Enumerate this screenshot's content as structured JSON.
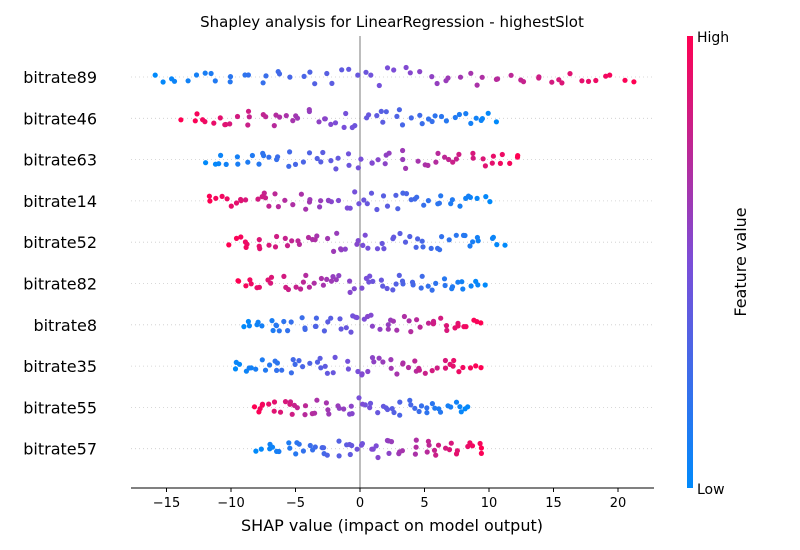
{
  "chart_data": {
    "type": "scatter",
    "title": "Shapley analysis for LinearRegression - highestSlot",
    "xlabel": "SHAP value (impact on model output)",
    "ylabel": "",
    "xlim": [
      -18,
      23
    ],
    "xticks": [
      -15,
      -10,
      -5,
      0,
      5,
      10,
      15,
      20
    ],
    "xtick_labels": [
      "−15",
      "−10",
      "−5",
      "0",
      "5",
      "10",
      "15",
      "20"
    ],
    "features": [
      "bitrate89",
      "bitrate46",
      "bitrate63",
      "bitrate14",
      "bitrate52",
      "bitrate82",
      "bitrate8",
      "bitrate35",
      "bitrate55",
      "bitrate57"
    ],
    "series": [
      {
        "feature": "bitrate89",
        "low_end": -16.0,
        "high_end": 21.0,
        "direction": 1
      },
      {
        "feature": "bitrate46",
        "low_end": 10.5,
        "high_end": -13.5,
        "direction": -1
      },
      {
        "feature": "bitrate63",
        "low_end": -11.8,
        "high_end": 12.5,
        "direction": 1
      },
      {
        "feature": "bitrate14",
        "low_end": 10.0,
        "high_end": -12.0,
        "direction": -1
      },
      {
        "feature": "bitrate52",
        "low_end": 11.0,
        "high_end": -10.3,
        "direction": -1
      },
      {
        "feature": "bitrate82",
        "low_end": 9.4,
        "high_end": -9.4,
        "direction": -1
      },
      {
        "feature": "bitrate8",
        "low_end": -9.0,
        "high_end": 9.4,
        "direction": 1
      },
      {
        "feature": "bitrate35",
        "low_end": -10.0,
        "high_end": 9.2,
        "direction": 1
      },
      {
        "feature": "bitrate55",
        "low_end": 8.5,
        "high_end": -8.5,
        "direction": -1
      },
      {
        "feature": "bitrate57",
        "low_end": -7.9,
        "high_end": 9.6,
        "direction": 1
      }
    ],
    "colorbar": {
      "label": "Feature value",
      "high_label": "High",
      "low_label": "Low"
    },
    "colors": {
      "low": "#008afb",
      "mid": "#7b4ed8",
      "high": "#ff0052",
      "zero_line": "#999999",
      "grid": "#cccccc"
    },
    "grid": false
  }
}
